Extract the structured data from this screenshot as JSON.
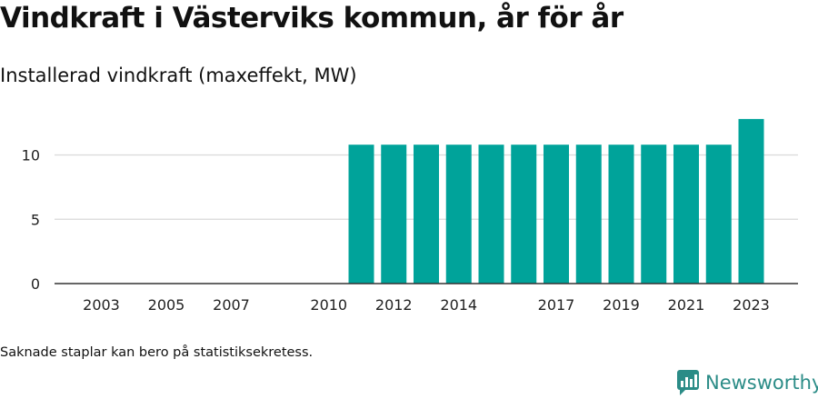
{
  "title": "Vindkraft i Västerviks kommun, år för år",
  "subtitle": "Installerad vindkraft (maxeffekt, MW)",
  "footnote": "Saknade staplar kan bero på statistiksekretess.",
  "brand": {
    "name": "Newsworthy",
    "logo_icon": "newsworthy-logo-icon"
  },
  "colors": {
    "bar": "#00a39a",
    "grid": "#d9d9d9",
    "axis": "#333333",
    "brand": "#2b8c87"
  },
  "chart_data": {
    "type": "bar",
    "categories": [
      "2003",
      "2004",
      "2005",
      "2006",
      "2007",
      "2008",
      "2009",
      "2010",
      "2011",
      "2012",
      "2013",
      "2014",
      "2015",
      "2016",
      "2017",
      "2018",
      "2019",
      "2020",
      "2021",
      "2022",
      "2023"
    ],
    "values": [
      null,
      null,
      null,
      null,
      null,
      null,
      null,
      null,
      10.8,
      10.8,
      10.8,
      10.8,
      10.8,
      10.8,
      10.8,
      10.8,
      10.8,
      10.8,
      10.8,
      10.8,
      12.8
    ],
    "x_tick_labels": [
      "2003",
      "2005",
      "2007",
      "2010",
      "2012",
      "2014",
      "2017",
      "2019",
      "2021",
      "2023"
    ],
    "y_ticks": [
      0,
      5,
      10
    ],
    "ylim": [
      0,
      13.5
    ],
    "grid": true,
    "xlabel": "",
    "ylabel": ""
  }
}
